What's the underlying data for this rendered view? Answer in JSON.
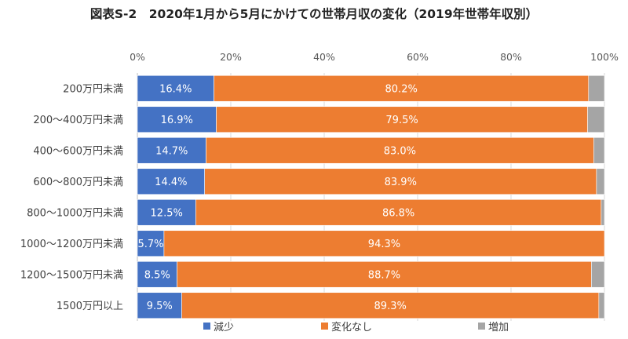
{
  "title": "図表S-2　2020年1月から5月にかけての世帯月収の変化（2019年世帯年収別）",
  "chart_data": {
    "type": "bar",
    "orientation": "horizontal",
    "stacked": true,
    "title": "図表S-2　2020年1月から5月にかけての世帯月収の変化（2019年世帯年収別）",
    "categories": [
      "200万円未満",
      "200〜400万円未満",
      "400〜600万円未満",
      "600〜800万円未満",
      "800〜1000万円未満",
      "1000〜1200万円未満",
      "1200〜1500万円未満",
      "1500万円以上"
    ],
    "series": [
      {
        "name": "減少",
        "color": "#4472c4",
        "values": [
          16.4,
          16.9,
          14.7,
          14.4,
          12.5,
          5.7,
          8.5,
          9.5
        ],
        "labels": [
          "16.4%",
          "16.9%",
          "14.7%",
          "14.4%",
          "12.5%",
          "5.7%",
          "8.5%",
          "9.5%"
        ]
      },
      {
        "name": "変化なし",
        "color": "#ed7d31",
        "values": [
          80.2,
          79.5,
          83.0,
          83.9,
          86.8,
          94.3,
          88.7,
          89.3
        ],
        "labels": [
          "80.2%",
          "79.5%",
          "83.0%",
          "83.9%",
          "86.8%",
          "94.3%",
          "88.7%",
          "89.3%"
        ]
      },
      {
        "name": "増加",
        "color": "#a5a5a5",
        "values": [
          3.4,
          3.6,
          2.3,
          1.7,
          0.7,
          0.0,
          2.8,
          1.2
        ]
      }
    ],
    "xlim": [
      0,
      100
    ],
    "xticks": [
      "0%",
      "20%",
      "40%",
      "60%",
      "80%",
      "100%"
    ],
    "xtick_values": [
      0,
      20,
      40,
      60,
      80,
      100
    ],
    "legend": "bottom",
    "grid": true
  }
}
